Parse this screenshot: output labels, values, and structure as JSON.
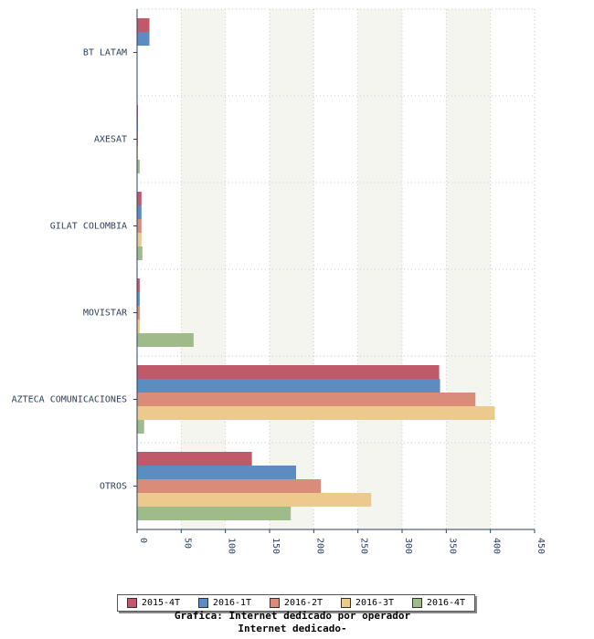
{
  "chart_data": {
    "type": "bar",
    "orientation": "horizontal",
    "categories": [
      "BT LATAM",
      "AXESAT",
      "GILAT COLOMBIA",
      "MOVISTAR",
      "AZTECA COMUNICACIONES",
      "OTROS"
    ],
    "series": [
      {
        "name": "2015-4T",
        "color": "#c05a6a",
        "values": [
          14,
          1,
          5,
          3,
          342,
          130
        ]
      },
      {
        "name": "2016-1T",
        "color": "#5d8cc0",
        "values": [
          14,
          1,
          5,
          3,
          343,
          180
        ]
      },
      {
        "name": "2016-2T",
        "color": "#d98c78",
        "values": [
          0,
          1,
          5,
          3,
          383,
          208
        ]
      },
      {
        "name": "2016-3T",
        "color": "#ecc98c",
        "values": [
          0,
          1,
          5,
          3,
          405,
          265
        ]
      },
      {
        "name": "2016-4T",
        "color": "#9fbb8a",
        "values": [
          0,
          3,
          6,
          64,
          8,
          174
        ]
      }
    ],
    "xticks": [
      0,
      50,
      100,
      150,
      200,
      250,
      300,
      350,
      400,
      450
    ],
    "xlim": [
      0,
      450
    ],
    "grid": true,
    "legend_position": "bottom"
  },
  "caption": {
    "line1": "Grafica: Internet dedicado por operador",
    "line2": "Internet dedicado-"
  }
}
